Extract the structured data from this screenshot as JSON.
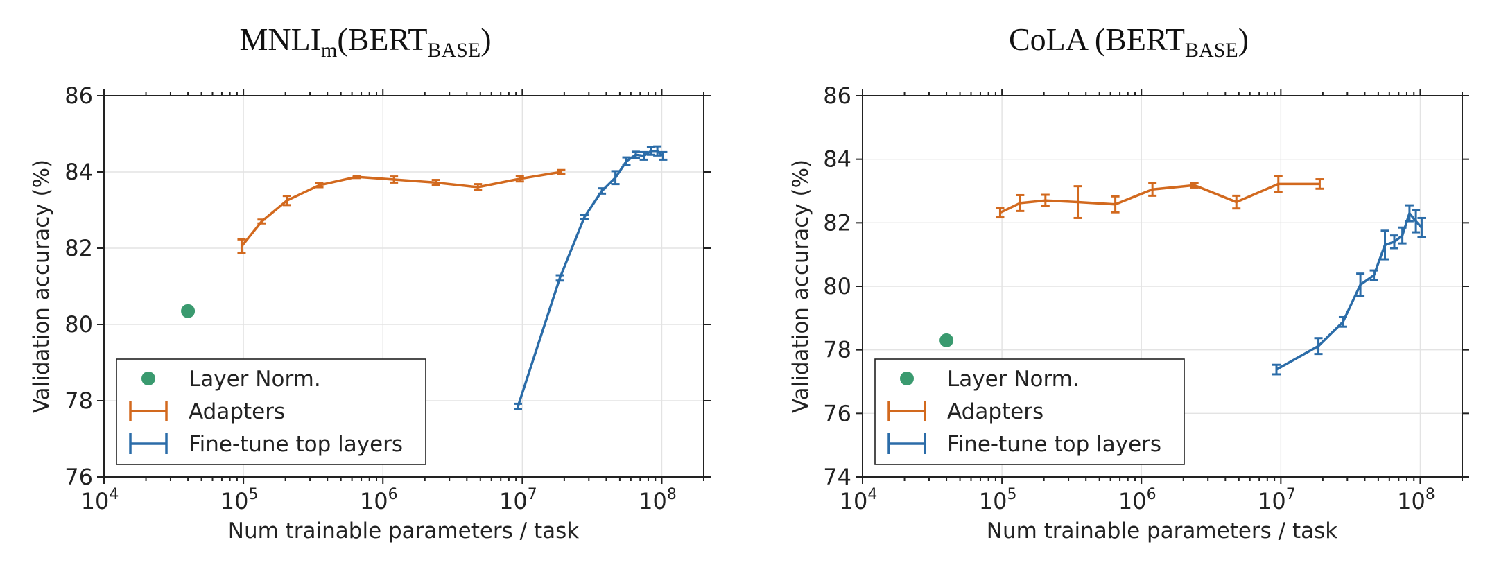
{
  "colors": {
    "adapters": "#d2691e",
    "finetune": "#2b6ca8",
    "layernorm": "#3a9a6f"
  },
  "legend": {
    "items": [
      "Layer Norm.",
      "Adapters",
      "Fine-tune top layers"
    ]
  },
  "chart_data": [
    {
      "type": "line",
      "title": "MNLI",
      "title_sub": "m",
      "title_rest": "(BERT",
      "title_sub2": "BASE",
      "title_close": ")",
      "xlabel": "Num trainable parameters / task",
      "ylabel": "Validation accuracy (%)",
      "xscale": "log",
      "xlim": [
        10000,
        200000000
      ],
      "ylim": [
        76,
        86
      ],
      "yticks": [
        76,
        78,
        80,
        82,
        84,
        86
      ],
      "xticks": [
        {
          "base": "10",
          "exp": "4",
          "value": 10000
        },
        {
          "base": "10",
          "exp": "5",
          "value": 100000
        },
        {
          "base": "10",
          "exp": "6",
          "value": 1000000
        },
        {
          "base": "10",
          "exp": "7",
          "value": 10000000
        },
        {
          "base": "10",
          "exp": "8",
          "value": 100000000
        }
      ],
      "grid": true,
      "legend_position": "lower-left",
      "series": [
        {
          "name": "Layer Norm.",
          "kind": "point",
          "x": [
            40000
          ],
          "y": [
            80.35
          ]
        },
        {
          "name": "Adapters",
          "kind": "errorline",
          "x": [
            97000,
            135000,
            205000,
            350000,
            650000,
            1200000,
            2400000,
            4800000,
            9600000,
            19000000
          ],
          "y": [
            82.05,
            82.7,
            83.25,
            83.65,
            83.87,
            83.8,
            83.72,
            83.6,
            83.82,
            84.0
          ],
          "err": [
            0.18,
            0.05,
            0.12,
            0.05,
            0.03,
            0.08,
            0.07,
            0.08,
            0.07,
            0.05
          ]
        },
        {
          "name": "Fine-tune top layers",
          "kind": "errorline",
          "x": [
            9300000,
            18600000,
            27900000,
            37200000,
            46500000,
            55800000,
            65100000,
            74400000,
            83700000,
            93000000,
            102300000
          ],
          "y": [
            77.85,
            81.22,
            82.82,
            83.5,
            83.85,
            84.28,
            84.45,
            84.42,
            84.55,
            84.55,
            84.42
          ],
          "err": [
            0.07,
            0.07,
            0.06,
            0.07,
            0.17,
            0.1,
            0.08,
            0.1,
            0.1,
            0.12,
            0.1
          ]
        }
      ]
    },
    {
      "type": "line",
      "title": "CoLA (BERT",
      "title_sub": "BASE",
      "title_close": ")",
      "xlabel": "Num trainable parameters / task",
      "ylabel": "Validation accuracy (%)",
      "xscale": "log",
      "xlim": [
        10000,
        200000000
      ],
      "ylim": [
        74,
        86
      ],
      "yticks": [
        74,
        76,
        78,
        80,
        82,
        84,
        86
      ],
      "xticks": [
        {
          "base": "10",
          "exp": "4",
          "value": 10000
        },
        {
          "base": "10",
          "exp": "5",
          "value": 100000
        },
        {
          "base": "10",
          "exp": "6",
          "value": 1000000
        },
        {
          "base": "10",
          "exp": "7",
          "value": 10000000
        },
        {
          "base": "10",
          "exp": "8",
          "value": 100000000
        }
      ],
      "grid": true,
      "legend_position": "lower-left",
      "series": [
        {
          "name": "Layer Norm.",
          "kind": "point",
          "x": [
            40000
          ],
          "y": [
            78.3
          ]
        },
        {
          "name": "Adapters",
          "kind": "errorline",
          "x": [
            97000,
            135000,
            205000,
            350000,
            650000,
            1200000,
            2400000,
            4800000,
            9600000,
            19000000
          ],
          "y": [
            82.32,
            82.62,
            82.7,
            82.65,
            82.58,
            83.05,
            83.18,
            82.65,
            83.22,
            83.22
          ],
          "err": [
            0.15,
            0.25,
            0.18,
            0.5,
            0.25,
            0.2,
            0.07,
            0.2,
            0.25,
            0.15
          ]
        },
        {
          "name": "Fine-tune top layers",
          "kind": "errorline",
          "x": [
            9300000,
            18600000,
            27900000,
            37200000,
            46500000,
            55800000,
            65100000,
            74400000,
            83700000,
            93000000,
            102300000
          ],
          "y": [
            77.38,
            78.12,
            78.88,
            80.05,
            80.35,
            81.3,
            81.4,
            81.6,
            82.3,
            82.05,
            81.85
          ],
          "err": [
            0.15,
            0.25,
            0.15,
            0.35,
            0.15,
            0.45,
            0.2,
            0.25,
            0.25,
            0.35,
            0.3
          ]
        }
      ]
    }
  ]
}
